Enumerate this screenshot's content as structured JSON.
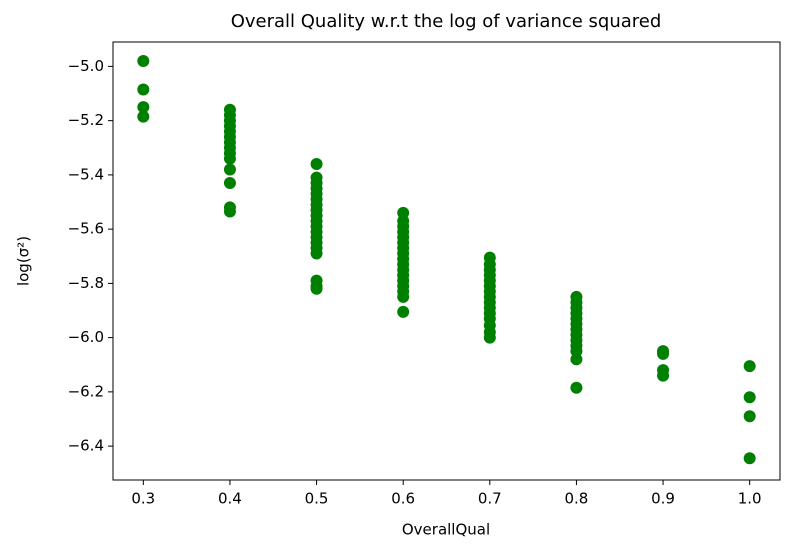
{
  "chart_data": {
    "type": "scatter",
    "title": "Overall Quality w.r.t the log of variance squared",
    "x_label": "OverallQual",
    "y_label": "log(σ²)",
    "x": [
      0.3,
      0.3,
      0.3,
      0.3,
      0.4,
      0.4,
      0.4,
      0.4,
      0.4,
      0.4,
      0.4,
      0.4,
      0.4,
      0.4,
      0.4,
      0.4,
      0.4,
      0.4,
      0.5,
      0.5,
      0.5,
      0.5,
      0.5,
      0.5,
      0.5,
      0.5,
      0.5,
      0.5,
      0.5,
      0.5,
      0.5,
      0.5,
      0.5,
      0.5,
      0.5,
      0.5,
      0.5,
      0.6,
      0.6,
      0.6,
      0.6,
      0.6,
      0.6,
      0.6,
      0.6,
      0.6,
      0.6,
      0.6,
      0.6,
      0.6,
      0.6,
      0.6,
      0.6,
      0.6,
      0.7,
      0.7,
      0.7,
      0.7,
      0.7,
      0.7,
      0.7,
      0.7,
      0.7,
      0.7,
      0.7,
      0.7,
      0.7,
      0.7,
      0.7,
      0.8,
      0.8,
      0.8,
      0.8,
      0.8,
      0.8,
      0.8,
      0.8,
      0.8,
      0.8,
      0.8,
      0.8,
      0.8,
      0.9,
      0.9,
      0.9,
      0.9,
      1.0,
      1.0,
      1.0,
      1.0
    ],
    "series": [
      {
        "color": "#008000",
        "values": [
          -4.98,
          -5.085,
          -5.15,
          -5.185,
          -5.16,
          -5.18,
          -5.2,
          -5.22,
          -5.24,
          -5.26,
          -5.28,
          -5.3,
          -5.32,
          -5.34,
          -5.38,
          -5.43,
          -5.52,
          -5.535,
          -5.36,
          -5.41,
          -5.43,
          -5.45,
          -5.47,
          -5.49,
          -5.51,
          -5.53,
          -5.55,
          -5.57,
          -5.59,
          -5.61,
          -5.63,
          -5.65,
          -5.67,
          -5.69,
          -5.79,
          -5.81,
          -5.82,
          -5.54,
          -5.57,
          -5.59,
          -5.61,
          -5.63,
          -5.65,
          -5.67,
          -5.69,
          -5.71,
          -5.73,
          -5.75,
          -5.77,
          -5.79,
          -5.81,
          -5.83,
          -5.85,
          -5.905,
          -5.705,
          -5.73,
          -5.75,
          -5.77,
          -5.79,
          -5.81,
          -5.83,
          -5.85,
          -5.87,
          -5.89,
          -5.91,
          -5.93,
          -5.955,
          -5.98,
          -6.0,
          -5.85,
          -5.87,
          -5.89,
          -5.91,
          -5.93,
          -5.95,
          -5.97,
          -5.99,
          -6.01,
          -6.03,
          -6.05,
          -6.08,
          -6.185,
          -6.05,
          -6.06,
          -6.12,
          -6.14,
          -6.105,
          -6.22,
          -6.29,
          -6.445
        ]
      }
    ],
    "xlim": [
      0.265,
      1.035
    ],
    "xticks": [
      0.3,
      0.4,
      0.5,
      0.6,
      0.7,
      0.8,
      0.9,
      {
        "value": 1.0,
        "label": "1.0"
      }
    ],
    "ylim": [
      -6.525,
      -4.91
    ],
    "yticks": [
      {
        "value": -5.0,
        "label": "−5.0"
      },
      {
        "value": -5.2,
        "label": "−5.2"
      },
      {
        "value": -5.4,
        "label": "−5.4"
      },
      {
        "value": -5.6,
        "label": "−5.6"
      },
      {
        "value": -5.8,
        "label": "−5.8"
      },
      {
        "value": -6.0,
        "label": "−6.0"
      },
      {
        "value": -6.2,
        "label": "−6.2"
      },
      {
        "value": -6.4,
        "label": "−6.4"
      }
    ],
    "grid": false
  }
}
